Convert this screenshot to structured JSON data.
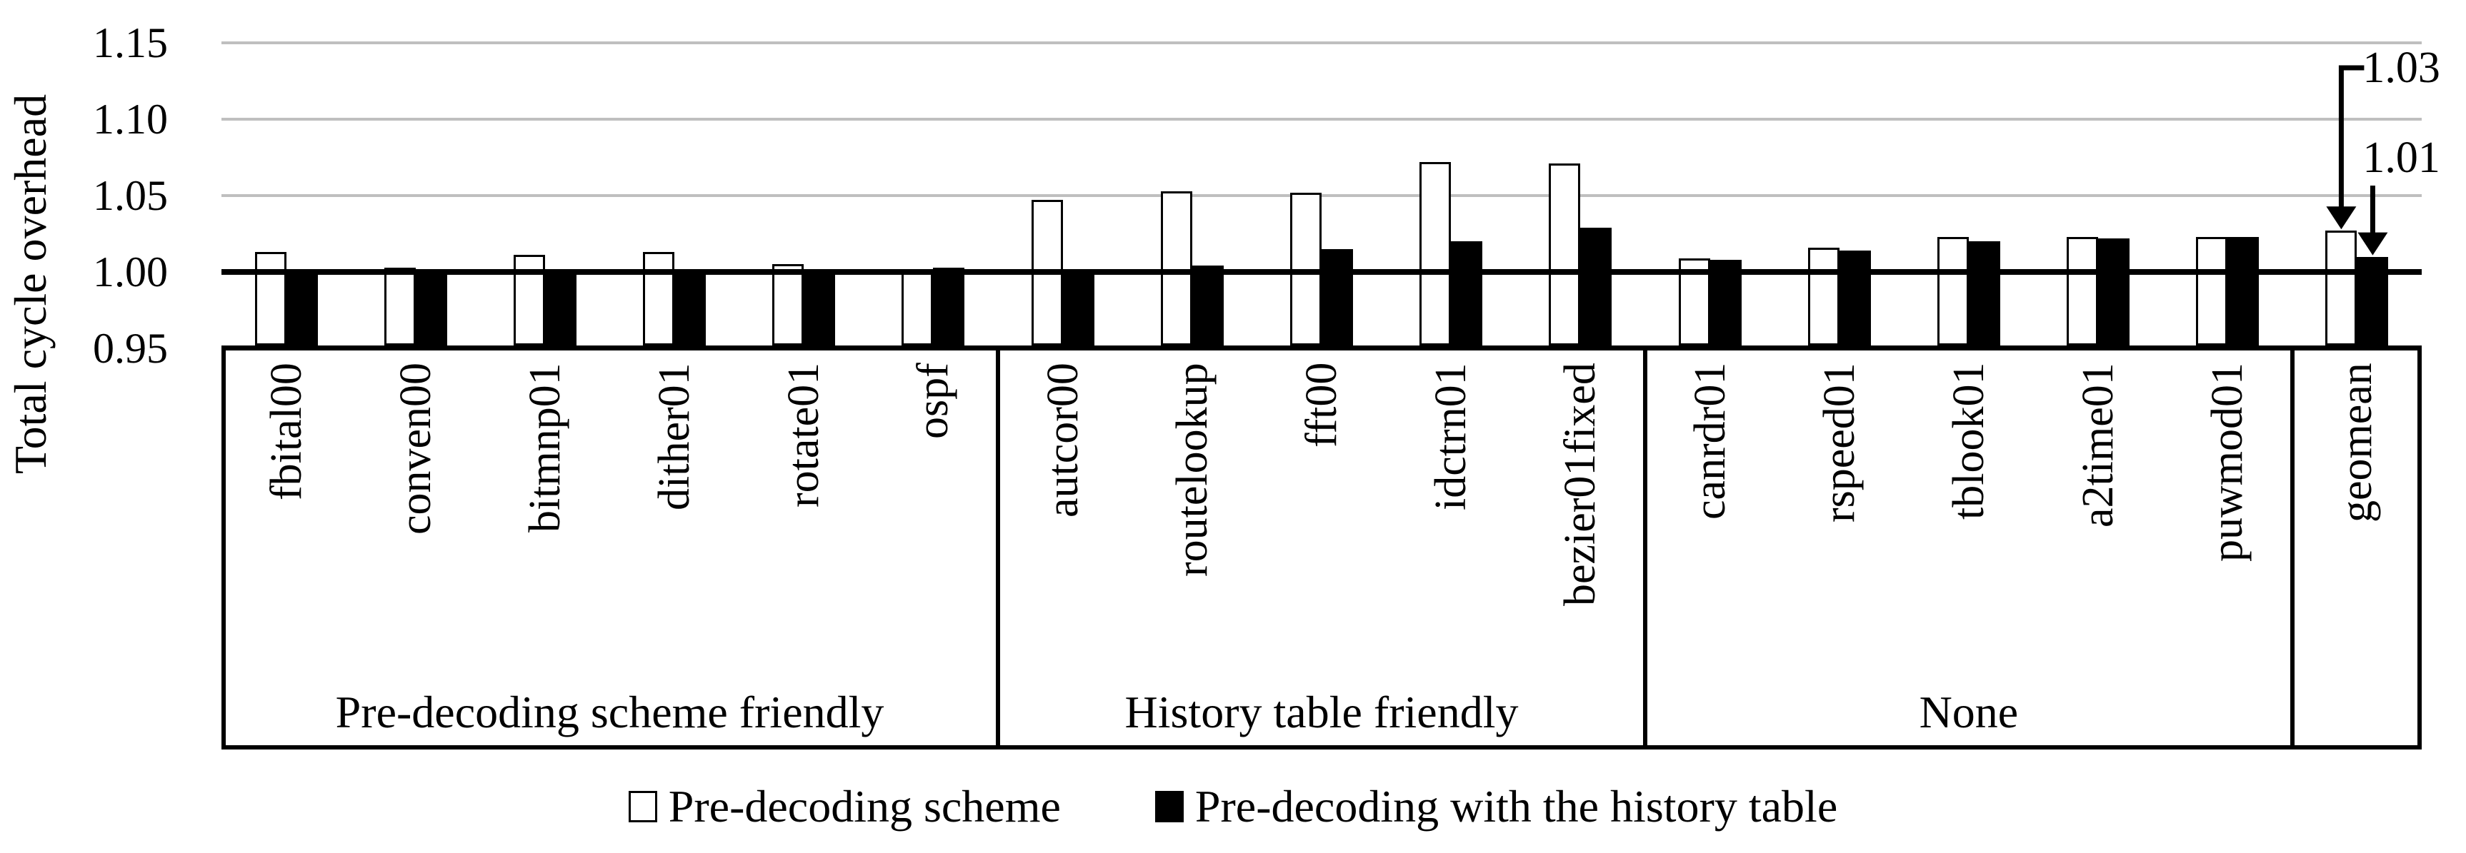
{
  "chart_data": {
    "type": "bar",
    "title": "",
    "ylabel": "Total cycle overhead",
    "xlabel": "",
    "ylim": [
      0.95,
      1.175
    ],
    "grid": true,
    "legend_position": "bottom",
    "yticks": [
      {
        "label": "1.15",
        "value": 1.15
      },
      {
        "label": "1.10",
        "value": 1.1
      },
      {
        "label": "1.05",
        "value": 1.05
      },
      {
        "label": "1.00",
        "value": 1.0
      },
      {
        "label": "0.95",
        "value": 0.95
      }
    ],
    "gridline_values": [
      1.15,
      1.1,
      1.05
    ],
    "reference_line_value": 1.0,
    "groups": [
      {
        "label": "Pre-decoding scheme friendly",
        "categories": [
          "fbital00",
          "conven00",
          "bitmnp01",
          "dither01",
          "rotate01",
          "ospf"
        ]
      },
      {
        "label": "History table friendly",
        "categories": [
          "autcor00",
          "routelookup",
          "fft00",
          "idctrn01",
          "bezier01fixed"
        ]
      },
      {
        "label": "None",
        "categories": [
          "canrdr01",
          "rspeed01",
          "tblook01",
          "a2time01",
          "puwmod01"
        ]
      },
      {
        "label": "",
        "categories": [
          "geomean"
        ]
      }
    ],
    "categories": [
      "fbital00",
      "conven00",
      "bitmnp01",
      "dither01",
      "rotate01",
      "ospf",
      "autcor00",
      "routelookup",
      "fft00",
      "idctrn01",
      "bezier01fixed",
      "canrdr01",
      "rspeed01",
      "tblook01",
      "a2time01",
      "puwmod01",
      "geomean"
    ],
    "series": [
      {
        "name": "Pre-decoding scheme",
        "fill": "#ffffff",
        "values": [
          1.013,
          1.003,
          1.011,
          1.013,
          1.005,
          1.002,
          1.047,
          1.053,
          1.052,
          1.072,
          1.071,
          1.009,
          1.016,
          1.023,
          1.023,
          1.023,
          1.027
        ]
      },
      {
        "name": "Pre-decoding with the history table",
        "fill": "#000000",
        "values": [
          1.0,
          1.0,
          1.0,
          1.0,
          1.002,
          1.003,
          1.0,
          1.004,
          1.015,
          1.02,
          1.029,
          1.008,
          1.014,
          1.02,
          1.022,
          1.023,
          1.01
        ]
      }
    ],
    "annotations": [
      {
        "text": "1.03",
        "category": "geomean",
        "series": 0,
        "value": 1.027
      },
      {
        "text": "1.01",
        "category": "geomean",
        "series": 1,
        "value": 1.01
      }
    ],
    "colors": {
      "gridline": "#BFBFBF",
      "axis": "#000000",
      "text": "#000000",
      "background": "#ffffff"
    }
  }
}
